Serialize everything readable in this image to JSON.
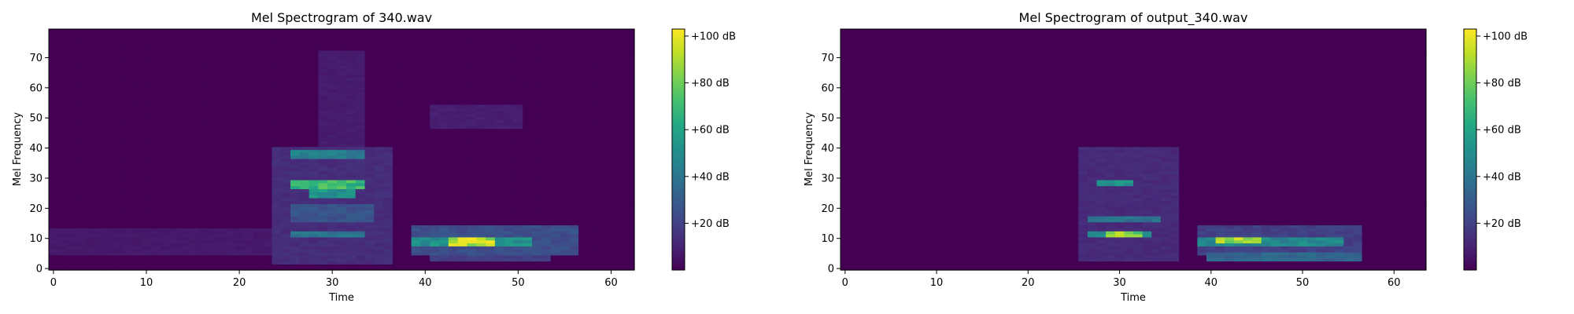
{
  "chart_data": [
    {
      "type": "heatmap",
      "title": "Mel Spectrogram of 340.wav",
      "xlabel": "Time",
      "ylabel": "Mel Frequency",
      "xlim": [
        -0.5,
        62.5
      ],
      "ylim": [
        -0.5,
        79.5
      ],
      "x_ticks": [
        0,
        10,
        20,
        30,
        40,
        50,
        60
      ],
      "y_ticks": [
        0,
        10,
        20,
        30,
        40,
        50,
        60,
        70
      ],
      "colormap": "viridis",
      "colorbar": {
        "min": 0,
        "max": 103,
        "ticks": [
          20,
          40,
          60,
          80,
          100
        ],
        "tick_labels": [
          "+20 dB",
          "+40 dB",
          "+60 dB",
          "+80 dB",
          "+100 dB"
        ]
      },
      "blobs": [
        {
          "t0": 26,
          "t1": 33,
          "m0": 27,
          "m1": 29,
          "db": 78
        },
        {
          "t0": 28,
          "t1": 32,
          "m0": 24,
          "m1": 26,
          "db": 62
        },
        {
          "t0": 26,
          "t1": 33,
          "m0": 37,
          "m1": 39,
          "db": 50
        },
        {
          "t0": 26,
          "t1": 33,
          "m0": 11,
          "m1": 12,
          "db": 45
        },
        {
          "t0": 26,
          "t1": 34,
          "m0": 16,
          "m1": 21,
          "db": 30
        },
        {
          "t0": 24,
          "t1": 36,
          "m0": 2,
          "m1": 40,
          "db": 15
        },
        {
          "t0": 29,
          "t1": 33,
          "m0": 40,
          "m1": 72,
          "db": 9
        },
        {
          "t0": 43,
          "t1": 47,
          "m0": 8,
          "m1": 10,
          "db": 103
        },
        {
          "t0": 39,
          "t1": 51,
          "m0": 8,
          "m1": 10,
          "db": 58
        },
        {
          "t0": 39,
          "t1": 56,
          "m0": 5,
          "m1": 14,
          "db": 28
        },
        {
          "t0": 41,
          "t1": 53,
          "m0": 3,
          "m1": 4,
          "db": 22
        },
        {
          "t0": 41,
          "t1": 50,
          "m0": 47,
          "m1": 54,
          "db": 10
        },
        {
          "t0": 0,
          "t1": 23,
          "m0": 5,
          "m1": 13,
          "db": 8
        }
      ]
    },
    {
      "type": "heatmap",
      "title": "Mel Spectrogram of output_340.wav",
      "xlabel": "Time",
      "ylabel": "Mel Frequency",
      "xlim": [
        -0.5,
        63.5
      ],
      "ylim": [
        -0.5,
        79.5
      ],
      "x_ticks": [
        0,
        10,
        20,
        30,
        40,
        50,
        60
      ],
      "y_ticks": [
        0,
        10,
        20,
        30,
        40,
        50,
        60,
        70
      ],
      "colormap": "viridis",
      "colorbar": {
        "min": 0,
        "max": 103,
        "ticks": [
          20,
          40,
          60,
          80,
          100
        ],
        "tick_labels": [
          "+20 dB",
          "+40 dB",
          "+60 dB",
          "+80 dB",
          "+100 dB"
        ]
      },
      "blobs": [
        {
          "t0": 29,
          "t1": 32,
          "m0": 11,
          "m1": 12,
          "db": 95
        },
        {
          "t0": 27,
          "t1": 33,
          "m0": 11,
          "m1": 12,
          "db": 55
        },
        {
          "t0": 28,
          "t1": 31,
          "m0": 28,
          "m1": 29,
          "db": 62
        },
        {
          "t0": 27,
          "t1": 34,
          "m0": 16,
          "m1": 17,
          "db": 45
        },
        {
          "t0": 26,
          "t1": 36,
          "m0": 3,
          "m1": 40,
          "db": 14
        },
        {
          "t0": 41,
          "t1": 45,
          "m0": 9,
          "m1": 10,
          "db": 100
        },
        {
          "t0": 39,
          "t1": 54,
          "m0": 8,
          "m1": 10,
          "db": 55
        },
        {
          "t0": 40,
          "t1": 56,
          "m0": 3,
          "m1": 5,
          "db": 38
        },
        {
          "t0": 39,
          "t1": 56,
          "m0": 5,
          "m1": 14,
          "db": 22
        }
      ]
    }
  ]
}
